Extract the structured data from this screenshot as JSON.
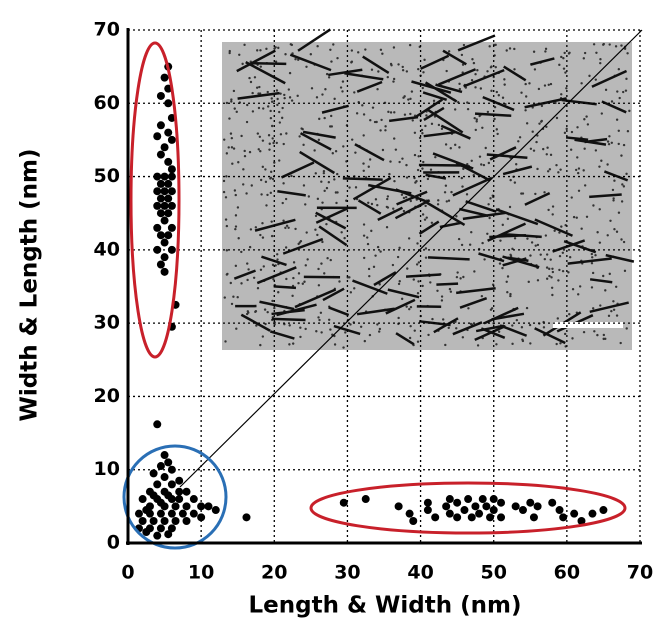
{
  "chart_data": {
    "type": "scatter",
    "x_label": "Length & Width (nm)",
    "y_label": "Width & Length (nm)",
    "xlim": [
      0,
      70
    ],
    "ylim": [
      0,
      70
    ],
    "xticks": [
      0,
      10,
      20,
      30,
      40,
      50,
      60,
      70
    ],
    "yticks": [
      0,
      10,
      20,
      30,
      40,
      50,
      60,
      70
    ],
    "grid": true,
    "color": "#000000",
    "x": [
      5.5,
      5,
      5.5,
      4.5,
      5.5,
      6,
      4.5,
      5.5,
      4,
      6,
      5,
      4.5,
      5.5,
      6,
      4,
      5,
      6,
      4.5,
      5.5,
      4,
      5,
      6,
      4.5,
      5.5,
      4,
      5,
      6,
      4.5,
      5.5,
      5,
      4,
      6,
      4.5,
      5.5,
      5,
      4,
      6,
      5,
      4.5,
      5,
      6.5,
      6,
      29.5,
      32.5,
      37,
      38.5,
      39,
      41,
      41,
      42,
      43.5,
      44,
      44,
      45,
      45,
      46,
      46.5,
      47,
      47.5,
      48,
      48.5,
      49,
      49.5,
      50,
      50,
      51,
      51,
      53,
      54,
      55,
      55.5,
      56,
      58,
      59,
      59.5,
      61,
      62,
      63.5,
      65,
      4,
      5,
      5.5,
      4.5,
      6,
      3.5,
      5,
      7,
      4,
      6,
      8,
      3,
      5,
      9,
      2,
      4,
      6,
      7,
      10,
      12,
      11,
      3,
      5,
      8,
      1.5,
      3,
      4.5,
      6,
      7.5,
      9,
      2,
      3.5,
      5,
      6.5,
      8,
      1.5,
      3,
      4.5,
      6,
      2.5,
      4,
      5.5,
      16.2,
      3.5,
      5.5,
      4.5,
      6.5,
      7,
      2.5,
      10
    ],
    "values": [
      65,
      63.5,
      62,
      61,
      60,
      58,
      57,
      56,
      55.5,
      55,
      54,
      53,
      52,
      51,
      50,
      50,
      50,
      49,
      49,
      48,
      48,
      48,
      47,
      47,
      46,
      46,
      46,
      45,
      45,
      44,
      43,
      43,
      42,
      42,
      41,
      40,
      40,
      39,
      38,
      37,
      32.5,
      29.5,
      5.5,
      6,
      5,
      4,
      3,
      4.5,
      5.5,
      3.5,
      5,
      4,
      6,
      3.5,
      5.5,
      4.5,
      6,
      3.5,
      5,
      4,
      6,
      5,
      3.5,
      4.5,
      6,
      5.5,
      3.5,
      5,
      4.5,
      5.5,
      3.5,
      5,
      5.5,
      4.5,
      3.5,
      4,
      3,
      4,
      4.5,
      16.2,
      12,
      11,
      10.5,
      10,
      9.5,
      9,
      8.5,
      8,
      8,
      7,
      7,
      7,
      6,
      6,
      6,
      6,
      6,
      5,
      4.5,
      5,
      5,
      5,
      5,
      4,
      4,
      4,
      4,
      4,
      4,
      3,
      3,
      3,
      3,
      3,
      2,
      2,
      2,
      2,
      1.5,
      1,
      1.2,
      3.5,
      6.5,
      6.5,
      5.5,
      5,
      7,
      4.5,
      3.5
    ]
  }
}
